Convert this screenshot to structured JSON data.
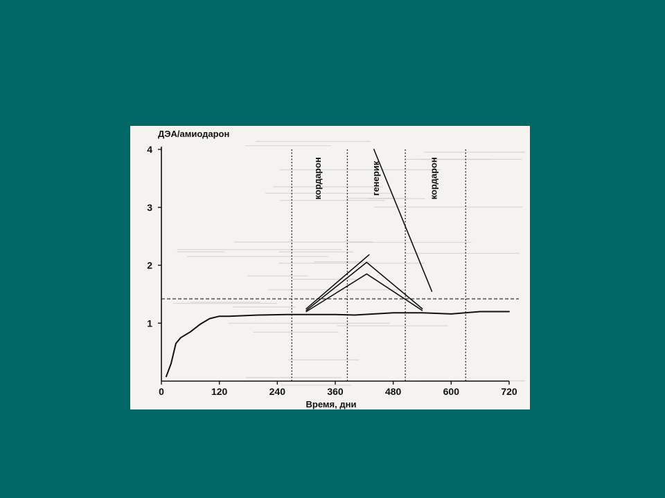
{
  "chart_data": {
    "type": "line",
    "ylabel": "ДЭА/амиодарон",
    "xlabel": "Время, дни",
    "xlim": [
      0,
      720
    ],
    "ylim": [
      0,
      4
    ],
    "xticks": [
      0,
      120,
      240,
      360,
      480,
      600,
      720
    ],
    "xtick_labels": [
      "0",
      "120",
      "240",
      "360",
      "480",
      "600",
      "720"
    ],
    "yticks": [
      1,
      2,
      3,
      4
    ],
    "ytick_labels": [
      "1",
      "2",
      "3",
      "4"
    ],
    "grid": false,
    "reference_line": {
      "y": 1.42,
      "style": "dashed"
    },
    "vertical_lines": [
      {
        "x": 270,
        "style": "dotted"
      },
      {
        "x": 385,
        "style": "dotted"
      },
      {
        "x": 505,
        "style": "dotted"
      },
      {
        "x": 630,
        "style": "dotted"
      }
    ],
    "annotations": [
      {
        "text": "кордарон",
        "x": 330,
        "y": 3.5
      },
      {
        "text": "генерик",
        "x": 450,
        "y": 3.5
      },
      {
        "text": "кордарон",
        "x": 570,
        "y": 3.5
      }
    ],
    "series": [
      {
        "x": [
          10,
          20,
          30,
          40,
          60,
          80,
          100,
          120,
          140,
          200,
          260,
          300,
          360,
          400,
          440,
          480,
          540,
          600,
          660,
          720
        ],
        "y": [
          0.08,
          0.3,
          0.65,
          0.75,
          0.85,
          0.98,
          1.08,
          1.12,
          1.12,
          1.14,
          1.15,
          1.15,
          1.15,
          1.14,
          1.16,
          1.18,
          1.18,
          1.16,
          1.2,
          1.2
        ]
      },
      {
        "x": [
          300,
          430
        ],
        "y": [
          1.25,
          2.18
        ]
      },
      {
        "x": [
          300,
          425,
          540
        ],
        "y": [
          1.22,
          2.05,
          1.25
        ]
      },
      {
        "x": [
          300,
          425,
          540
        ],
        "y": [
          1.2,
          1.85,
          1.22
        ]
      },
      {
        "x": [
          440,
          560
        ],
        "y": [
          4.0,
          1.55
        ]
      }
    ]
  }
}
